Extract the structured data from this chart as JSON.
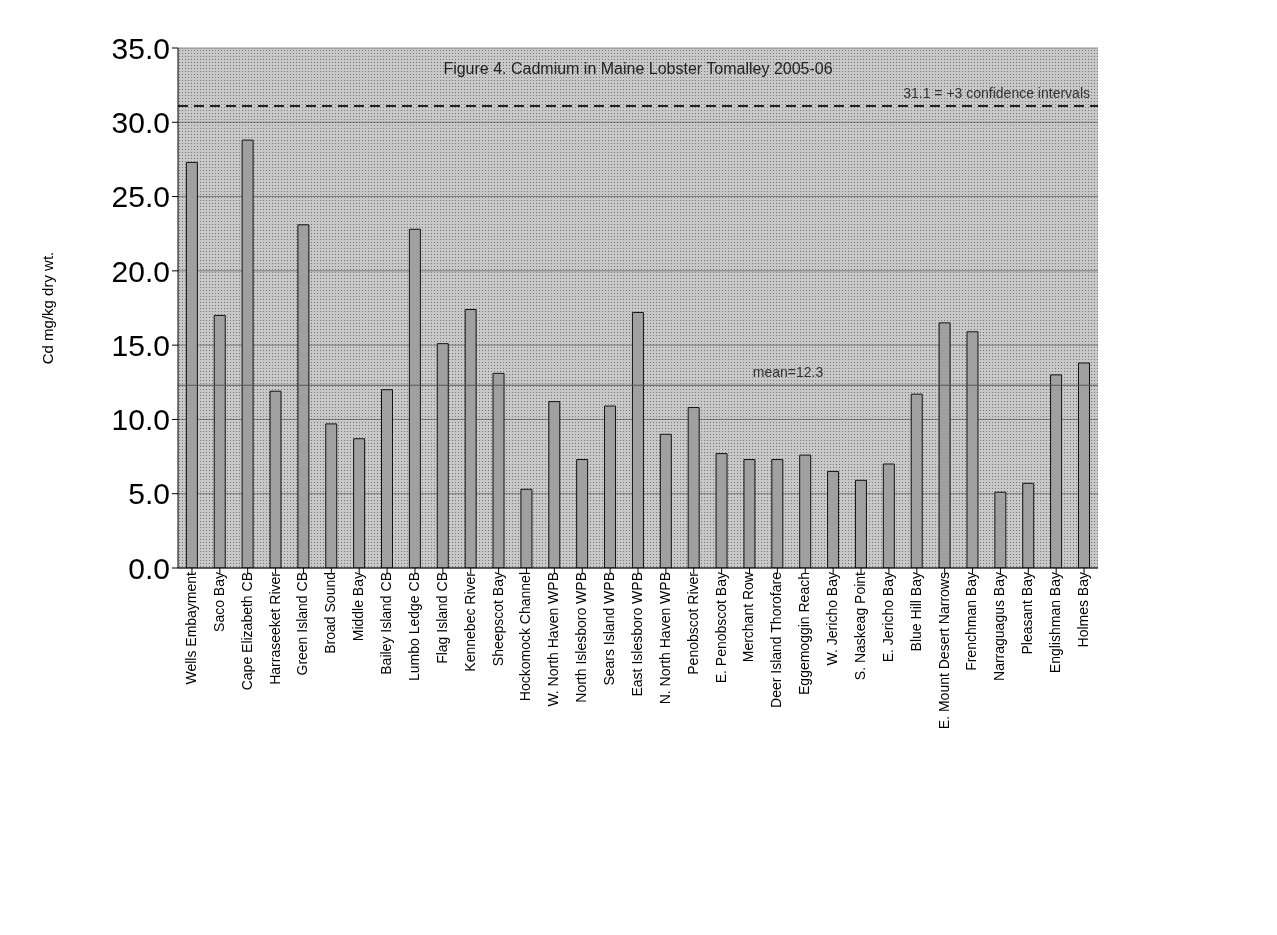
{
  "chart_data": {
    "type": "bar",
    "title": "Figure 4. Cadmium in Maine Lobster Tomalley 2005-06",
    "ylabel": "Cd mg/kg dry wt.",
    "categories": [
      "Wells Embayment",
      "Saco Bay",
      "Cape Elizabeth CB",
      "Harraseeket River",
      "Green Island CB",
      "Broad Sound",
      "Middle Bay",
      "Bailey Island CB",
      "Lumbo Ledge CB",
      "Flag Island CB",
      "Kennebec River",
      "Sheepscot Bay",
      "Hockomock Channel",
      "W. North Haven WPB",
      "North Islesboro WPB",
      "Sears Island WPB",
      "East Islesboro WPB",
      "N. North Haven WPB",
      "Penobscot River",
      "E. Penobscot Bay",
      "Merchant Row",
      "Deer Island Thorofare",
      "Eggemoggin Reach",
      "W. Jericho Bay",
      "S. Naskeag Point",
      "E. Jericho Bay",
      "Blue Hill Bay",
      "E. Mount Desert Narrows",
      "Frenchman Bay",
      "Narraguagus Bay",
      "Pleasant Bay",
      "Englishman Bay",
      "Holmes Bay"
    ],
    "values": [
      27.3,
      17.0,
      28.8,
      11.9,
      23.1,
      9.7,
      8.7,
      12.0,
      22.8,
      15.1,
      17.4,
      13.1,
      5.3,
      11.2,
      7.3,
      10.9,
      17.2,
      9.0,
      10.8,
      7.7,
      7.3,
      7.3,
      7.6,
      6.5,
      5.9,
      7.0,
      11.7,
      16.5,
      15.9,
      5.1,
      5.7,
      13.0,
      13.8
    ],
    "color": "#a0a0a0",
    "ylim": [
      0,
      35
    ],
    "yticks": [
      {
        "value": 0,
        "label": "0.0"
      },
      {
        "value": 5,
        "label": "5.0"
      },
      {
        "value": 10,
        "label": "10.0"
      },
      {
        "value": 15,
        "label": "15.0"
      },
      {
        "value": 20,
        "label": "20.0"
      },
      {
        "value": 25,
        "label": "25.0"
      },
      {
        "value": 30,
        "label": "30.0"
      },
      {
        "value": 35,
        "label": "35.0"
      }
    ],
    "grid": "y",
    "ref_lines": [
      {
        "axis": "y",
        "value": 31.1,
        "label": "31.1 = +3 confidence intervals",
        "line_style": "dashed",
        "color": "#222222"
      },
      {
        "axis": "y",
        "value": 12.3,
        "label": "mean=12.3",
        "line_style": "solid",
        "color": "#555555"
      }
    ]
  }
}
